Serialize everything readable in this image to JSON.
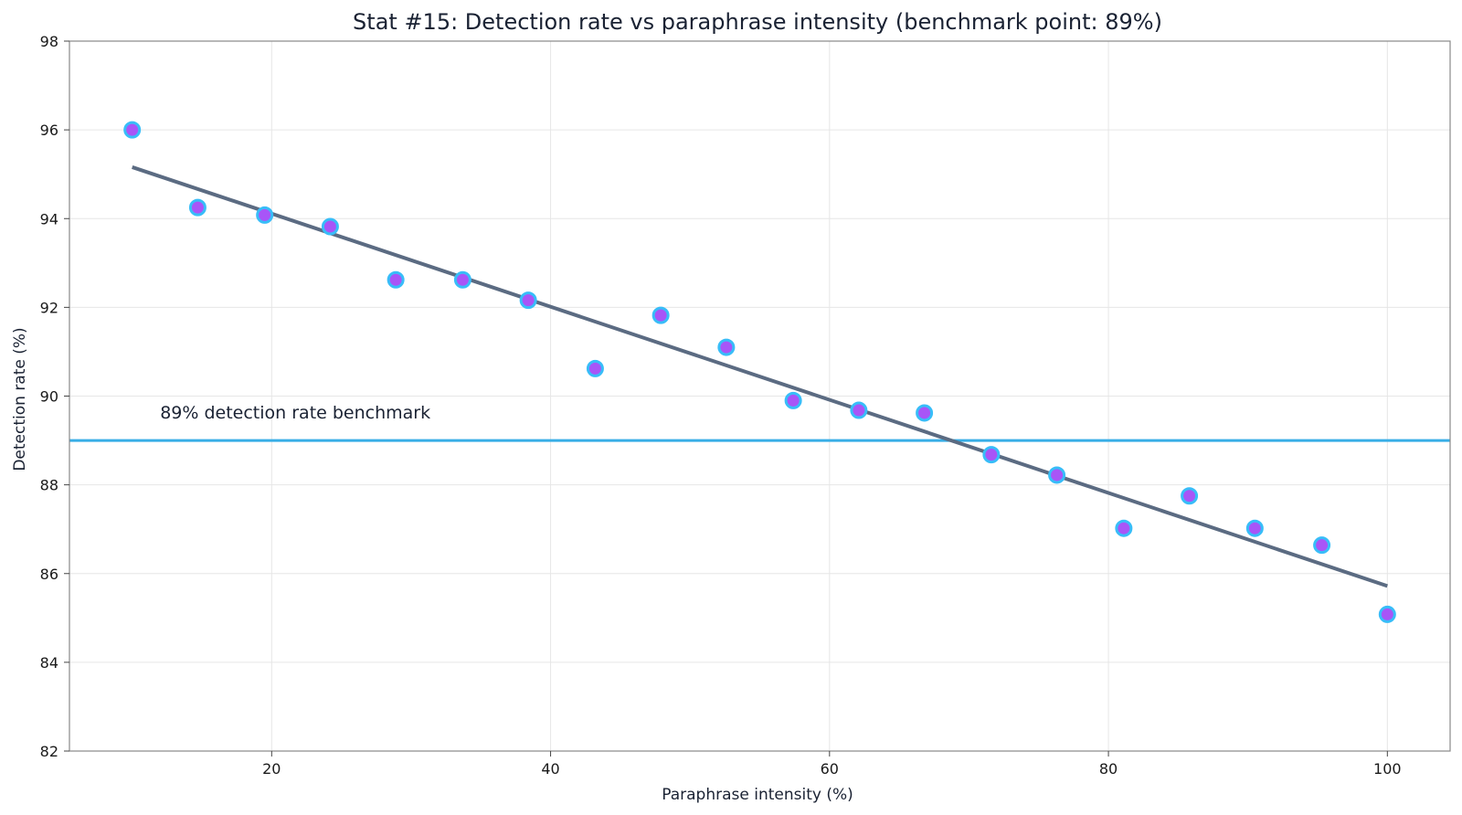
{
  "chart_data": {
    "type": "scatter",
    "title": "Stat #15: Detection rate vs paraphrase intensity (benchmark point: 89%)",
    "xlabel": "Paraphrase intensity (%)",
    "ylabel": "Detection rate (%)",
    "xlim": [
      5.5,
      104.5
    ],
    "ylim": [
      82,
      98
    ],
    "xticks": [
      20,
      40,
      60,
      80,
      100
    ],
    "yticks": [
      82,
      84,
      86,
      88,
      90,
      92,
      94,
      96,
      98
    ],
    "grid": true,
    "series": [
      {
        "x": [
          10.0,
          14.7,
          19.5,
          24.2,
          28.9,
          33.7,
          38.4,
          43.2,
          47.9,
          52.6,
          57.4,
          62.1,
          66.8,
          71.6,
          76.3,
          81.1,
          85.8,
          90.5,
          95.3,
          100.0
        ],
        "y": [
          96.0,
          94.25,
          94.08,
          93.82,
          92.62,
          92.62,
          92.16,
          90.62,
          91.82,
          91.1,
          89.9,
          89.68,
          89.62,
          88.68,
          88.22,
          87.02,
          87.75,
          87.02,
          86.64,
          85.08
        ],
        "point_color": "#a855f7",
        "point_edge_color": "#38bdf8"
      }
    ],
    "trend_line": {
      "x": [
        10,
        100
      ],
      "y": [
        95.16,
        85.72
      ],
      "color": "#5b6b82"
    },
    "benchmark": {
      "y": 89,
      "color": "#38aee6",
      "label": "89% detection rate benchmark",
      "label_x": 12,
      "label_y": 89.5
    }
  }
}
